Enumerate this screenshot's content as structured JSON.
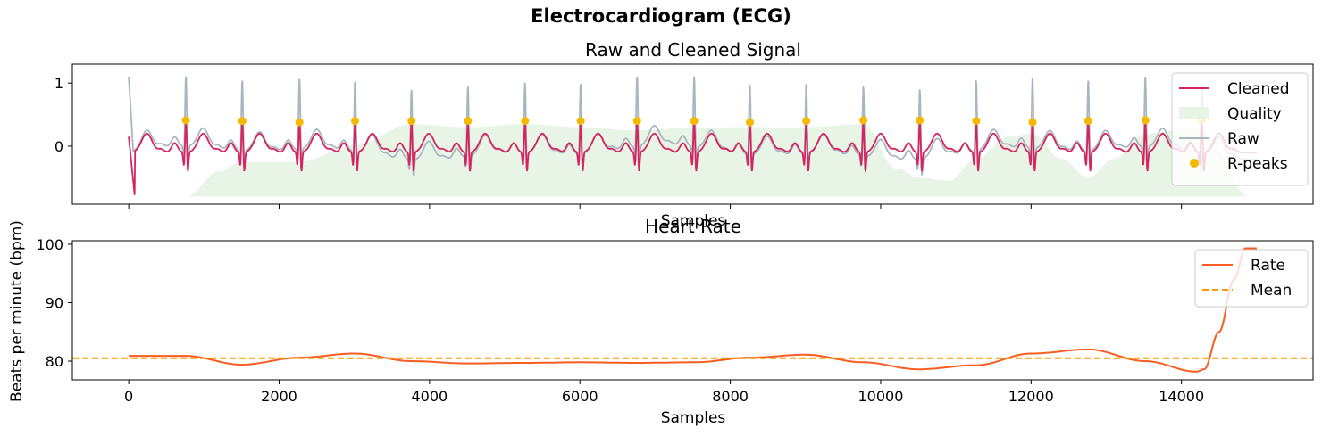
{
  "title": "Electrocardiogram (ECG)",
  "chart_data": [
    {
      "type": "line",
      "title": "Raw and Cleaned Signal",
      "xlabel": "Samples",
      "ylabel": "",
      "xlim": [
        -750,
        15750
      ],
      "ylim": [
        -0.92,
        1.3
      ],
      "x_ticks": [
        0,
        2000,
        4000,
        6000,
        8000,
        10000,
        12000,
        14000
      ],
      "y_ticks": [
        0,
        1
      ],
      "y_tick_labels": [
        "0",
        "1"
      ],
      "show_x_tick_labels": false,
      "grid": false,
      "legend_position": "top-right",
      "r_peaks": {
        "x": [
          760,
          1510,
          2270,
          3010,
          3760,
          4510,
          5270,
          6010,
          6760,
          7520,
          8260,
          9010,
          9770,
          10520,
          11270,
          12020,
          12760,
          13520,
          14270
        ],
        "y": [
          0.41,
          0.4,
          0.38,
          0.4,
          0.4,
          0.4,
          0.4,
          0.4,
          0.4,
          0.4,
          0.38,
          0.4,
          0.41,
          0.41,
          0.4,
          0.38,
          0.4,
          0.41,
          0.42
        ]
      },
      "quality_envelope": {
        "x": [
          760,
          1200,
          1510,
          2270,
          3010,
          3760,
          4510,
          5270,
          6010,
          6760,
          7520,
          8260,
          9010,
          9770,
          10200,
          10520,
          10900,
          11270,
          11700,
          12020,
          12400,
          12760,
          13100,
          13520,
          14270,
          14900
        ],
        "y": [
          -0.8,
          -0.4,
          -0.25,
          -0.25,
          0.02,
          0.35,
          0.3,
          0.35,
          0.3,
          0.25,
          0.3,
          0.3,
          0.3,
          0.35,
          -0.35,
          -0.5,
          -0.55,
          -0.2,
          0.15,
          0.2,
          -0.2,
          -0.5,
          -0.2,
          0.2,
          0.3,
          -0.8
        ]
      },
      "series": [
        {
          "name": "Cleaned",
          "color": "#d6245e",
          "description_values": "ECG waveform, baseline ~-0.1, R-peaks ~0.4"
        },
        {
          "name": "Quality",
          "color": "#e8f4e6"
        },
        {
          "name": "Raw",
          "color": "#a7b7bf"
        },
        {
          "name": "R-peaks",
          "color": "#f5b800"
        }
      ]
    },
    {
      "type": "line",
      "title": "Heart Rate",
      "xlabel": "Samples",
      "ylabel": "Beats per minute (bpm)",
      "xlim": [
        -750,
        15750
      ],
      "ylim": [
        76.8,
        100.6
      ],
      "x_ticks": [
        0,
        2000,
        4000,
        6000,
        8000,
        10000,
        12000,
        14000
      ],
      "x_tick_labels": [
        "0",
        "2000",
        "4000",
        "6000",
        "8000",
        "10000",
        "12000",
        "14000"
      ],
      "y_ticks": [
        80,
        90,
        100
      ],
      "y_tick_labels": [
        "80",
        "90",
        "100"
      ],
      "grid": false,
      "legend_position": "top-right",
      "series": [
        {
          "name": "Rate",
          "color": "#f95d22",
          "x": [
            0,
            760,
            1500,
            2270,
            3000,
            3760,
            4510,
            5270,
            6010,
            6760,
            7520,
            8260,
            9000,
            9770,
            10500,
            11270,
            12000,
            12760,
            13520,
            14200,
            14300,
            14500,
            14700,
            14850,
            15000
          ],
          "y": [
            80.9,
            80.9,
            79.4,
            80.6,
            81.3,
            80.0,
            79.6,
            79.7,
            79.8,
            79.7,
            79.8,
            80.6,
            81.1,
            79.8,
            78.6,
            79.3,
            81.3,
            82.0,
            80.0,
            78.2,
            78.6,
            85.0,
            94.0,
            99.3,
            99.3
          ]
        },
        {
          "name": "Mean",
          "color": "#ff9900",
          "value": 80.5
        }
      ]
    }
  ]
}
